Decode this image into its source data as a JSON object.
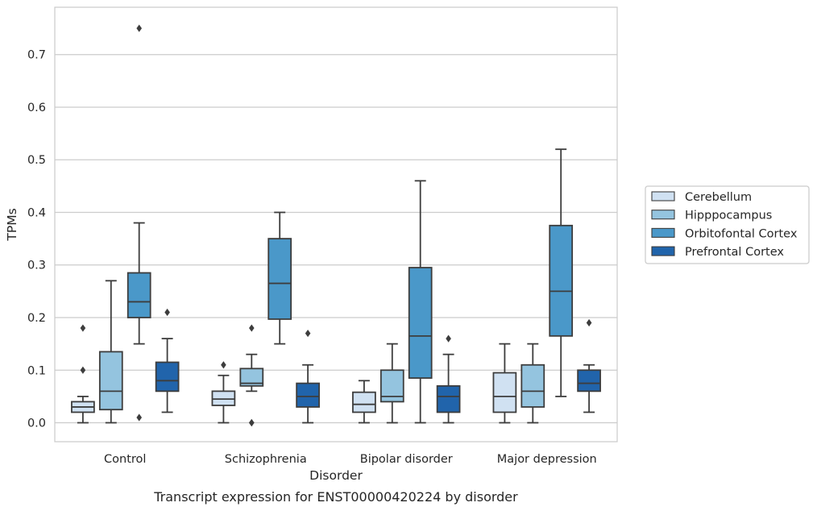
{
  "chart_data": {
    "type": "boxplot",
    "title": "",
    "caption": "Transcript expression for ENST00000420224 by disorder",
    "xlabel": "Disorder",
    "ylabel": "TPMs",
    "ylim": [
      -0.036,
      0.79
    ],
    "yticks": [
      0.0,
      0.1,
      0.2,
      0.3,
      0.4,
      0.5,
      0.6,
      0.7
    ],
    "ytick_labels": [
      "0.0",
      "0.1",
      "0.2",
      "0.3",
      "0.4",
      "0.5",
      "0.6",
      "0.7"
    ],
    "grid": "horizontal",
    "legend_placement": "outside-right",
    "categories": [
      "Control",
      "Schizophrenia",
      "Bipolar disorder",
      "Major depression"
    ],
    "series": [
      {
        "name": "Cerebellum",
        "color": "#d0e1f2",
        "boxes": [
          {
            "whislo": 0.0,
            "q1": 0.02,
            "med": 0.03,
            "q3": 0.04,
            "whishi": 0.05,
            "fliers": [
              0.1,
              0.18
            ]
          },
          {
            "whislo": 0.0,
            "q1": 0.033,
            "med": 0.045,
            "q3": 0.06,
            "whishi": 0.09,
            "fliers": [
              0.11
            ]
          },
          {
            "whislo": 0.0,
            "q1": 0.02,
            "med": 0.035,
            "q3": 0.058,
            "whishi": 0.08,
            "fliers": []
          },
          {
            "whislo": 0.0,
            "q1": 0.02,
            "med": 0.05,
            "q3": 0.095,
            "whishi": 0.15,
            "fliers": []
          }
        ]
      },
      {
        "name": "Hipppocampus",
        "color": "#94c4df",
        "boxes": [
          {
            "whislo": 0.0,
            "q1": 0.025,
            "med": 0.06,
            "q3": 0.135,
            "whishi": 0.27,
            "fliers": []
          },
          {
            "whislo": 0.06,
            "q1": 0.07,
            "med": 0.075,
            "q3": 0.103,
            "whishi": 0.13,
            "fliers": [
              0.18,
              0.0,
              0.0
            ]
          },
          {
            "whislo": 0.0,
            "q1": 0.04,
            "med": 0.05,
            "q3": 0.1,
            "whishi": 0.15,
            "fliers": []
          },
          {
            "whislo": 0.0,
            "q1": 0.03,
            "med": 0.06,
            "q3": 0.11,
            "whishi": 0.15,
            "fliers": []
          }
        ]
      },
      {
        "name": "Orbitofontal Cortex",
        "color": "#4a98c9",
        "boxes": [
          {
            "whislo": 0.15,
            "q1": 0.2,
            "med": 0.23,
            "q3": 0.285,
            "whishi": 0.38,
            "fliers": [
              0.75,
              0.01
            ]
          },
          {
            "whislo": 0.15,
            "q1": 0.197,
            "med": 0.265,
            "q3": 0.35,
            "whishi": 0.4,
            "fliers": []
          },
          {
            "whislo": 0.0,
            "q1": 0.085,
            "med": 0.165,
            "q3": 0.295,
            "whishi": 0.46,
            "fliers": []
          },
          {
            "whislo": 0.05,
            "q1": 0.165,
            "med": 0.25,
            "q3": 0.375,
            "whishi": 0.52,
            "fliers": []
          }
        ]
      },
      {
        "name": "Prefrontal Cortex",
        "color": "#2164ab",
        "boxes": [
          {
            "whislo": 0.02,
            "q1": 0.06,
            "med": 0.08,
            "q3": 0.115,
            "whishi": 0.16,
            "fliers": [
              0.21
            ]
          },
          {
            "whislo": 0.0,
            "q1": 0.03,
            "med": 0.05,
            "q3": 0.075,
            "whishi": 0.11,
            "fliers": [
              0.17
            ]
          },
          {
            "whislo": 0.0,
            "q1": 0.02,
            "med": 0.05,
            "q3": 0.07,
            "whishi": 0.13,
            "fliers": [
              0.16
            ]
          },
          {
            "whislo": 0.02,
            "q1": 0.06,
            "med": 0.075,
            "q3": 0.1,
            "whishi": 0.11,
            "fliers": [
              0.19
            ]
          }
        ]
      }
    ]
  }
}
